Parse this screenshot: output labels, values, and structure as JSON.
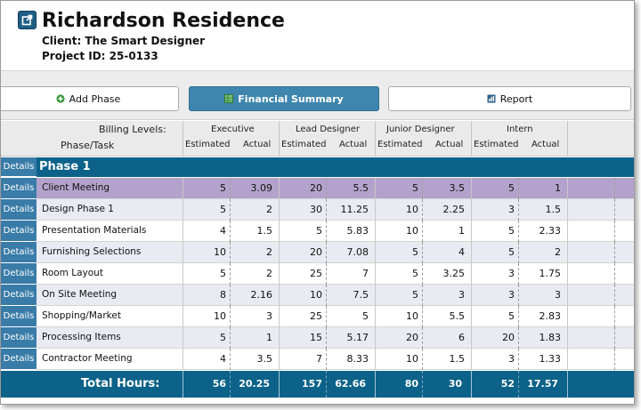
{
  "project": {
    "title": "Richardson Residence",
    "client_line": "Client: The Smart Designer",
    "project_id_line": "Project ID: 25-0133"
  },
  "toolbar": {
    "add_phase_label": "Add Phase",
    "financial_summary_label": "Financial Summary",
    "report_label": "Report"
  },
  "table": {
    "billing_levels_label": "Billing Levels:",
    "phase_task_label": "Phase/Task",
    "levels": [
      "Executive",
      "Lead Designer",
      "Junior Designer",
      "Intern"
    ],
    "estimated_label": "Estimated",
    "actual_label": "Actual",
    "details_label": "Details",
    "phase_name": "Phase 1",
    "rows": [
      {
        "task": "Client Meeting",
        "values": [
          "5",
          "3.09",
          "20",
          "5.5",
          "5",
          "3.5",
          "5",
          "1"
        ]
      },
      {
        "task": "Design Phase 1",
        "values": [
          "5",
          "2",
          "30",
          "11.25",
          "10",
          "2.25",
          "3",
          "1.5"
        ]
      },
      {
        "task": "Presentation Materials",
        "values": [
          "4",
          "1.5",
          "5",
          "5.83",
          "10",
          "1",
          "5",
          "2.33"
        ]
      },
      {
        "task": "Furnishing Selections",
        "values": [
          "10",
          "2",
          "20",
          "7.08",
          "5",
          "4",
          "5",
          "2"
        ]
      },
      {
        "task": "Room Layout",
        "values": [
          "5",
          "2",
          "25",
          "7",
          "5",
          "3.25",
          "3",
          "1.75"
        ]
      },
      {
        "task": "On Site Meeting",
        "values": [
          "8",
          "2.16",
          "10",
          "7.5",
          "5",
          "3",
          "3",
          "3"
        ]
      },
      {
        "task": "Shopping/Market",
        "values": [
          "10",
          "3",
          "25",
          "5",
          "10",
          "5.5",
          "5",
          "2.83"
        ]
      },
      {
        "task": "Processing Items",
        "values": [
          "5",
          "1",
          "15",
          "5.17",
          "20",
          "6",
          "20",
          "1.83"
        ]
      },
      {
        "task": "Contractor Meeting",
        "values": [
          "4",
          "3.5",
          "7",
          "8.33",
          "10",
          "1.5",
          "3",
          "1.33"
        ]
      }
    ],
    "total_label": "Total Hours:",
    "totals": [
      "56",
      "20.25",
      "157",
      "62.66",
      "80",
      "30",
      "52",
      "17.57"
    ]
  },
  "colors": {
    "header_blue": "#0c6289",
    "details_blue": "#3a7ca8",
    "selected_row": "#b3a3cc",
    "alt_row": "#e9ebf2",
    "active_button": "#3e86ad"
  },
  "icons": {
    "open": "external-link-icon",
    "add": "plus-circle-icon",
    "financial": "spreadsheet-icon",
    "report": "report-icon"
  }
}
